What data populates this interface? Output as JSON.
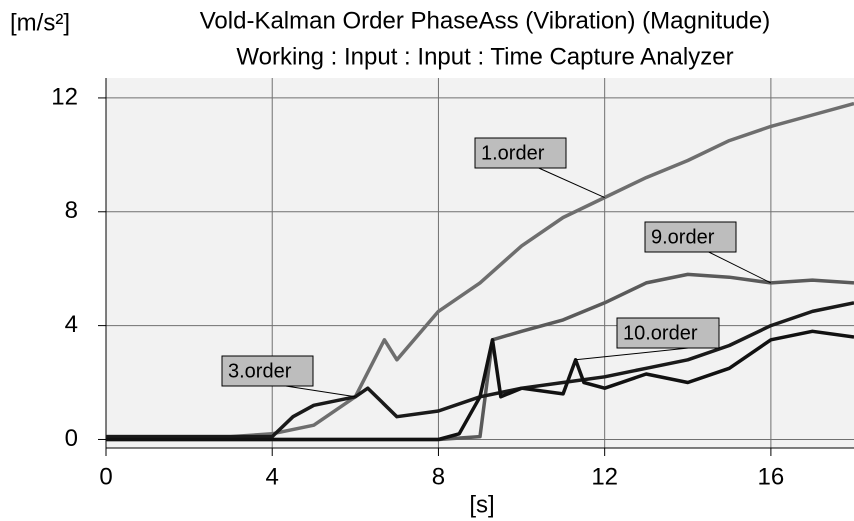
{
  "chart_data": {
    "type": "line",
    "title": "Vold-Kalman Order PhaseAss (Vibration) (Magnitude)",
    "subtitle": "Working : Input : Input : Time Capture Analyzer",
    "y_label": "[m/s²]",
    "x_label": "[s]",
    "xlim": [
      0,
      18
    ],
    "xticks": [
      0,
      4,
      8,
      12,
      16
    ],
    "ylim": [
      -0.3,
      12.7
    ],
    "yticks": [
      0,
      4,
      8,
      12
    ],
    "grid": true,
    "series": [
      {
        "name": "1.order",
        "color": "#6e6e6e",
        "x": [
          0,
          1,
          2,
          3,
          4,
          5,
          6,
          6.7,
          7,
          8,
          9,
          10,
          11,
          12,
          13,
          14,
          15,
          16,
          17,
          18
        ],
        "values": [
          0.1,
          0.1,
          0.1,
          0.1,
          0.2,
          0.5,
          1.5,
          3.5,
          2.8,
          4.5,
          5.5,
          6.8,
          7.8,
          8.5,
          9.2,
          9.8,
          10.5,
          11,
          11.4,
          11.8
        ]
      },
      {
        "name": "9.order",
        "color": "#5a5a5a",
        "x": [
          0,
          2,
          4,
          6,
          8,
          9,
          9.3,
          10,
          11,
          12,
          13,
          14,
          15,
          16,
          17,
          18
        ],
        "values": [
          0,
          0,
          0,
          0,
          0,
          0.1,
          3.5,
          3.8,
          4.2,
          4.8,
          5.5,
          5.8,
          5.7,
          5.5,
          5.6,
          5.5
        ]
      },
      {
        "name": "3.order",
        "color": "#1a1a1a",
        "x": [
          0,
          1,
          2,
          3,
          4,
          4.5,
          5,
          6,
          6.3,
          7,
          8,
          9,
          10,
          11,
          12,
          13,
          14,
          15,
          16,
          17,
          18
        ],
        "values": [
          0.1,
          0.1,
          0.1,
          0.1,
          0.1,
          0.8,
          1.2,
          1.5,
          1.8,
          0.8,
          1.0,
          1.5,
          1.8,
          2.0,
          2.2,
          2.5,
          2.8,
          3.3,
          4.0,
          4.5,
          4.8
        ]
      },
      {
        "name": "10.order",
        "color": "#111111",
        "x": [
          0,
          2,
          4,
          6,
          8,
          8.5,
          9,
          9.3,
          9.5,
          10,
          11,
          11.3,
          11.5,
          12,
          13,
          14,
          15,
          16,
          17,
          18
        ],
        "values": [
          0,
          0,
          0,
          0,
          0,
          0.2,
          1.5,
          3.5,
          1.5,
          1.8,
          1.6,
          2.8,
          2.0,
          1.8,
          2.3,
          2.0,
          2.5,
          3.5,
          3.8,
          3.6
        ]
      }
    ]
  }
}
